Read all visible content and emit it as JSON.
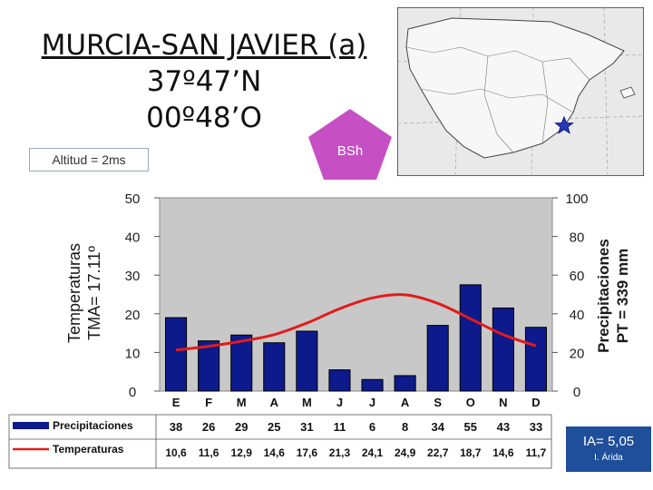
{
  "header": {
    "title_line1": "MURCIA-SAN JAVIER (a)",
    "title_line2": "37º47’N",
    "title_line3": "00º48’O",
    "altitude": "Altitud = 2ms",
    "climate_code": "BSh"
  },
  "colors": {
    "bars": "#0d1a8c",
    "line": "#e21b1b",
    "plot_bg": "#c8c8c8",
    "pentagon": "#c64fc4",
    "ia_box": "#1f4e9a"
  },
  "chart_data": {
    "type": "bar",
    "categories": [
      "E",
      "F",
      "M",
      "A",
      "M",
      "J",
      "J",
      "A",
      "S",
      "O",
      "N",
      "D"
    ],
    "series": [
      {
        "name": "Precipitaciones",
        "kind": "bar",
        "axis": "right",
        "values": [
          38,
          26,
          29,
          25,
          31,
          11,
          6,
          8,
          34,
          55,
          43,
          33
        ]
      },
      {
        "name": "Temperaturas",
        "kind": "line",
        "axis": "left",
        "values": [
          10.6,
          11.6,
          12.9,
          14.6,
          17.6,
          21.3,
          24.1,
          24.9,
          22.7,
          18.7,
          14.6,
          11.7
        ]
      }
    ],
    "table_values": {
      "precip": [
        "38",
        "26",
        "29",
        "25",
        "31",
        "11",
        "6",
        "8",
        "34",
        "55",
        "43",
        "33"
      ],
      "temp": [
        "10,6",
        "11,6",
        "12,9",
        "14,6",
        "17,6",
        "21,3",
        "24,1",
        "24,9",
        "22,7",
        "18,7",
        "14,6",
        "11,7"
      ]
    },
    "y_left": {
      "label_line1": "Temperaturas",
      "label_line2": "TMA= 17.11º",
      "ylim": [
        0,
        50
      ],
      "ticks": [
        0,
        10,
        20,
        30,
        40,
        50
      ]
    },
    "y_right": {
      "label_line1": "Precipitaciones",
      "label_line2": "PT = 339 mm",
      "ylim": [
        0,
        100
      ],
      "ticks": [
        0,
        20,
        40,
        60,
        80,
        100
      ]
    },
    "grid": false,
    "legend": "bottom-left table"
  },
  "ia": {
    "value": "IA= 5,05",
    "type": "I. Árida"
  }
}
